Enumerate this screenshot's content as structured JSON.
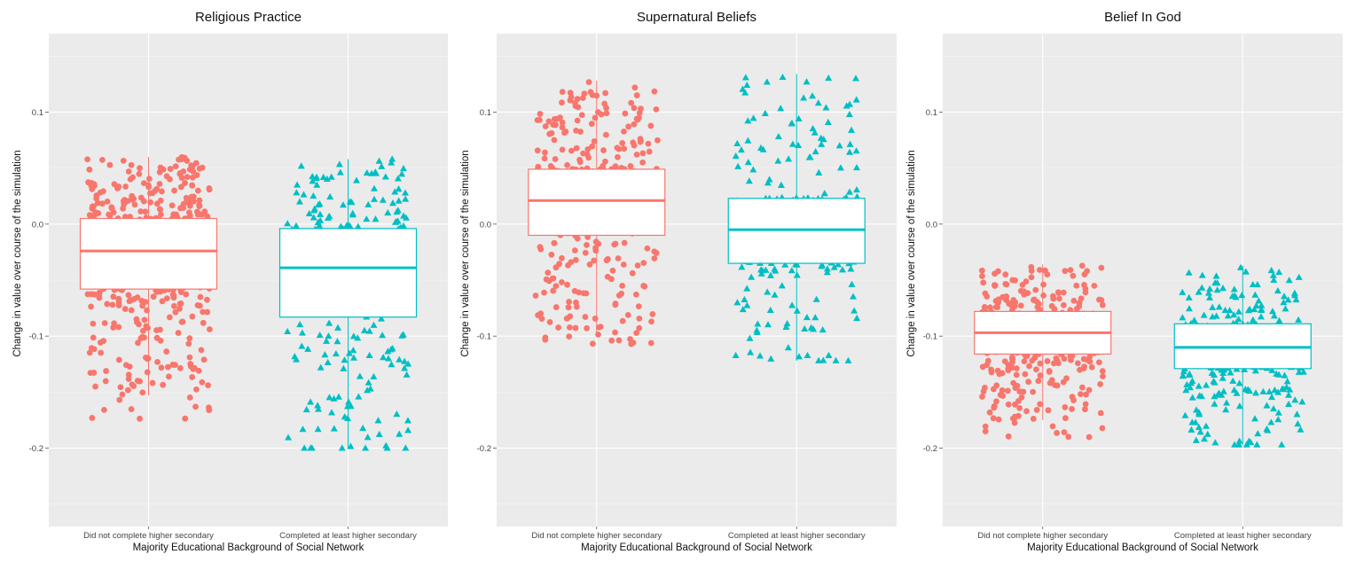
{
  "chart_data": [
    {
      "type": "box",
      "title": "Religious Practice",
      "xlabel": "Majority Educational Background of Social Network",
      "ylabel": "Change in value over course of the simulation",
      "ylim": [
        -0.27,
        0.17
      ],
      "yticks": [
        -0.2,
        -0.1,
        0.0,
        0.1
      ],
      "ytick_labels": [
        "-0.2",
        "-0.1",
        "0.0",
        "0.1"
      ],
      "categories": [
        "Did not complete higher secondary",
        "Completed at least higher secondary"
      ],
      "grid": true,
      "series": [
        {
          "name": "Did not complete higher secondary",
          "color": "#F8766D",
          "marker": "circle",
          "box": {
            "q1": -0.058,
            "median": -0.024,
            "q3": 0.005,
            "whisker_low": -0.153,
            "whisker_high": 0.06
          },
          "jitter_n": 550,
          "point_min": -0.175,
          "point_max": 0.062
        },
        {
          "name": "Completed at least higher secondary",
          "color": "#00BFC4",
          "marker": "triangle",
          "box": {
            "q1": -0.083,
            "median": -0.039,
            "q3": -0.004,
            "whisker_low": -0.2,
            "whisker_high": 0.058
          },
          "jitter_n": 320,
          "point_min": -0.2,
          "point_max": 0.058
        }
      ]
    },
    {
      "type": "box",
      "title": "Supernatural Beliefs",
      "xlabel": "Majority Educational Background of Social Network",
      "ylabel": "Change in value over course of the simulation",
      "ylim": [
        -0.27,
        0.17
      ],
      "yticks": [
        -0.2,
        -0.1,
        0.0,
        0.1
      ],
      "ytick_labels": [
        "-0.2",
        "-0.1",
        "0.0",
        "0.1"
      ],
      "categories": [
        "Did not complete higher secondary",
        "Completed at least higher secondary"
      ],
      "grid": true,
      "series": [
        {
          "name": "Did not complete higher secondary",
          "color": "#F8766D",
          "marker": "circle",
          "box": {
            "q1": -0.01,
            "median": 0.021,
            "q3": 0.049,
            "whisker_low": -0.1,
            "whisker_high": 0.128
          },
          "jitter_n": 420,
          "point_min": -0.108,
          "point_max": 0.128
        },
        {
          "name": "Completed at least higher secondary",
          "color": "#00BFC4",
          "marker": "triangle",
          "box": {
            "q1": -0.035,
            "median": -0.005,
            "q3": 0.023,
            "whisker_low": -0.122,
            "whisker_high": 0.134
          },
          "jitter_n": 300,
          "point_min": -0.122,
          "point_max": 0.134
        }
      ]
    },
    {
      "type": "box",
      "title": "Belief In God",
      "xlabel": "Majority Educational Background of Social Network",
      "ylabel": "Change in value over course of the simulation",
      "ylim": [
        -0.27,
        0.17
      ],
      "yticks": [
        -0.2,
        -0.1,
        0.0,
        0.1
      ],
      "ytick_labels": [
        "-0.2",
        "-0.1",
        "0.0",
        "0.1"
      ],
      "categories": [
        "Did not complete higher secondary",
        "Completed at least higher secondary"
      ],
      "grid": true,
      "series": [
        {
          "name": "Did not complete higher secondary",
          "color": "#F8766D",
          "marker": "circle",
          "box": {
            "q1": -0.116,
            "median": -0.097,
            "q3": -0.078,
            "whisker_low": -0.175,
            "whisker_high": -0.036
          },
          "jitter_n": 420,
          "point_min": -0.192,
          "point_max": -0.036
        },
        {
          "name": "Completed at least higher secondary",
          "color": "#00BFC4",
          "marker": "triangle",
          "box": {
            "q1": -0.129,
            "median": -0.11,
            "q3": -0.089,
            "whisker_low": -0.197,
            "whisker_high": -0.037
          },
          "jitter_n": 330,
          "point_min": -0.197,
          "point_max": -0.037
        }
      ]
    }
  ]
}
